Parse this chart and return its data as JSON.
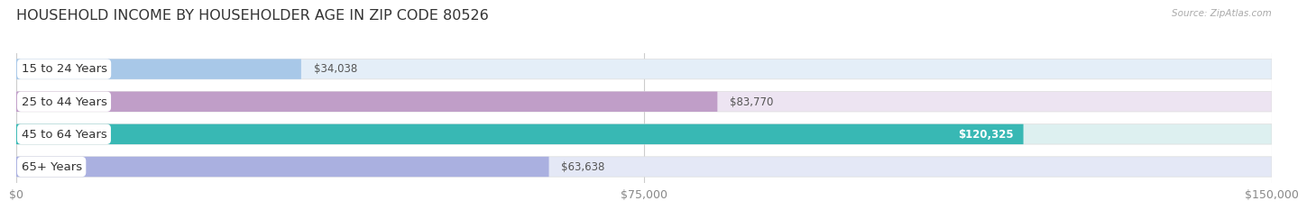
{
  "title": "HOUSEHOLD INCOME BY HOUSEHOLDER AGE IN ZIP CODE 80526",
  "source": "Source: ZipAtlas.com",
  "categories": [
    "15 to 24 Years",
    "25 to 44 Years",
    "45 to 64 Years",
    "65+ Years"
  ],
  "values": [
    34038,
    83770,
    120325,
    63638
  ],
  "bar_colors": [
    "#a8c8e8",
    "#c09ec8",
    "#38b8b4",
    "#aab0e0"
  ],
  "bar_bg_colors": [
    "#e4eef8",
    "#ede4f2",
    "#ddf0f0",
    "#e4e8f6"
  ],
  "label_colors": [
    "#444444",
    "#444444",
    "#ffffff",
    "#444444"
  ],
  "value_labels": [
    "$34,038",
    "$83,770",
    "$120,325",
    "$63,638"
  ],
  "x_max": 150000,
  "x_ticks": [
    0,
    75000,
    150000
  ],
  "x_tick_labels": [
    "$0",
    "$75,000",
    "$150,000"
  ],
  "background_color": "#ffffff",
  "bar_height": 0.62,
  "title_fontsize": 11.5,
  "label_fontsize": 9.5,
  "value_fontsize": 8.5,
  "tick_fontsize": 9
}
